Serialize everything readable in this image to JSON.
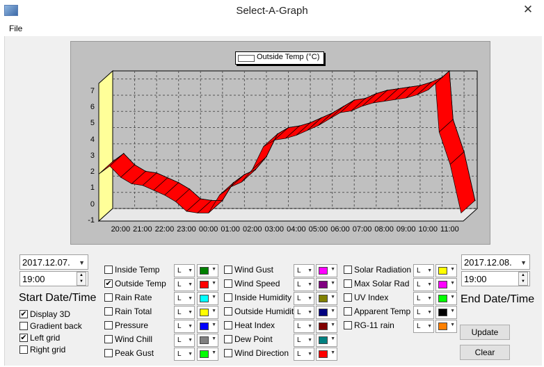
{
  "window": {
    "title": "Select-A-Graph",
    "close_glyph": "✕"
  },
  "menu": {
    "file": "File"
  },
  "chart_data": {
    "type": "area",
    "legend": [
      "Outside Temp (°C)"
    ],
    "y_ticks": [
      "7",
      "6",
      "5",
      "4",
      "3",
      "2",
      "1",
      "0",
      "-1"
    ],
    "x_ticks": [
      "20:00",
      "21:00",
      "22:00",
      "23:00",
      "00:00",
      "01:00",
      "02:00",
      "03:00",
      "04:00",
      "05:00",
      "06:00",
      "07:00",
      "08:00",
      "09:00",
      "10:00",
      "11:00"
    ],
    "ylim": [
      -1,
      7.5
    ],
    "display_3d": true,
    "grid": "left",
    "series": [
      {
        "name": "Outside Temp (°C)",
        "color": "#ff0000",
        "x": [
          "19:00",
          "19:30",
          "20:00",
          "20:30",
          "21:00",
          "21:30",
          "22:00",
          "22:30",
          "23:00",
          "23:30",
          "00:00",
          "00:30",
          "01:00",
          "01:30",
          "02:00",
          "02:30",
          "03:00",
          "03:30",
          "04:00",
          "04:30",
          "05:00",
          "05:30",
          "06:00",
          "06:30",
          "07:00",
          "07:30",
          "08:00",
          "08:30",
          "09:00",
          "09:30",
          "10:00",
          "10:20",
          "10:30",
          "11:00",
          "11:30"
        ],
        "values": [
          1.9,
          2.4,
          1.7,
          1.3,
          1.2,
          0.9,
          0.6,
          0.2,
          -0.4,
          -0.5,
          -0.5,
          0.6,
          1.1,
          1.4,
          2.2,
          3.6,
          4.0,
          4.1,
          4.3,
          4.6,
          4.9,
          5.3,
          5.7,
          5.8,
          6.1,
          6.3,
          6.4,
          6.5,
          6.6,
          6.8,
          7.1,
          7.5,
          4.5,
          2.5,
          -0.5
        ]
      }
    ]
  },
  "start": {
    "date": "2017.12.07.",
    "time": "19:00",
    "label": "Start Date/Time"
  },
  "end": {
    "date": "2017.12.08.",
    "time": "19:00",
    "label": "End Date/Time"
  },
  "options": [
    {
      "label": "Display 3D",
      "checked": true
    },
    {
      "label": "Gradient back",
      "checked": false
    },
    {
      "label": "Left grid",
      "checked": true
    },
    {
      "label": "Right grid",
      "checked": false
    }
  ],
  "sensors": [
    [
      {
        "label": "Inside Temp",
        "checked": false,
        "mode": "L",
        "color": "#008000"
      },
      {
        "label": "Outside Temp",
        "checked": true,
        "mode": "L",
        "color": "#ff0000"
      },
      {
        "label": "Rain Rate",
        "checked": false,
        "mode": "L",
        "color": "#00ffff"
      },
      {
        "label": "Rain Total",
        "checked": false,
        "mode": "L",
        "color": "#ffff00"
      },
      {
        "label": "Pressure",
        "checked": false,
        "mode": "L",
        "color": "#0000ff"
      },
      {
        "label": "Wind Chill",
        "checked": false,
        "mode": "L",
        "color": "#808080"
      },
      {
        "label": "Peak Gust",
        "checked": false,
        "mode": "L",
        "color": "#00ff00"
      }
    ],
    [
      {
        "label": "Wind Gust",
        "checked": false,
        "mode": "L",
        "color": "#ff00ff"
      },
      {
        "label": "Wind Speed",
        "checked": false,
        "mode": "L",
        "color": "#800080"
      },
      {
        "label": "Inside Humidity",
        "checked": false,
        "mode": "L",
        "color": "#808000"
      },
      {
        "label": "Outside Humidity",
        "checked": false,
        "mode": "L",
        "color": "#000080"
      },
      {
        "label": "Heat Index",
        "checked": false,
        "mode": "L",
        "color": "#800000"
      },
      {
        "label": "Dew Point",
        "checked": false,
        "mode": "L",
        "color": "#008080"
      },
      {
        "label": "Wind Direction",
        "checked": false,
        "mode": "L",
        "color": "#ff0000"
      }
    ],
    [
      {
        "label": "Solar Radiation",
        "checked": false,
        "mode": "L",
        "color": "#ffff00"
      },
      {
        "label": "Max Solar Rad",
        "checked": false,
        "mode": "L",
        "color": "#ff00ff"
      },
      {
        "label": "UV Index",
        "checked": false,
        "mode": "L",
        "color": "#00ff00"
      },
      {
        "label": "Apparent Temp",
        "checked": false,
        "mode": "L",
        "color": "#000000"
      },
      {
        "label": "RG-11 rain",
        "checked": false,
        "mode": "L",
        "color": "#ff8000"
      }
    ]
  ],
  "buttons": {
    "update": "Update",
    "clear": "Clear"
  }
}
